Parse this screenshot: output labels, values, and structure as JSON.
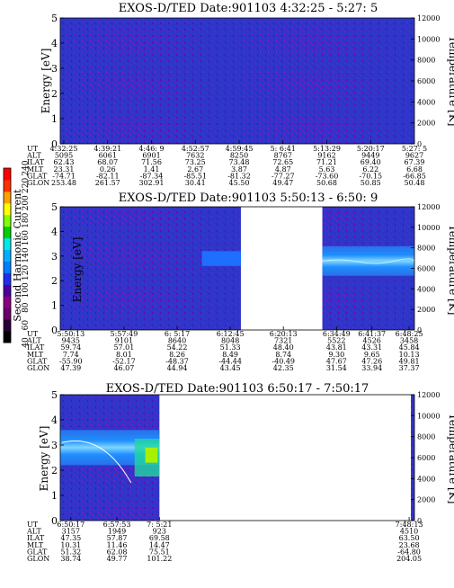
{
  "colors": {
    "background": "#6a00a8",
    "field": "#2e35c8",
    "speck": "#7a1fd0",
    "band_core": "#7fd6ff",
    "band_edge": "#1f8fff",
    "band_mid": "#2a6fe8",
    "colorbar": [
      "#000000",
      "#2a0038",
      "#6a006a",
      "#8a0080",
      "#4b00a0",
      "#1f2ff0",
      "#0080ff",
      "#00b0ff",
      "#00e8e8",
      "#00d000",
      "#80ff00",
      "#ffff00",
      "#ffa000",
      "#ff3000",
      "#ff0000"
    ]
  },
  "colorbar": {
    "label": "Second Harmonic Current",
    "ticks": [
      "40",
      "60",
      "80",
      "100",
      "120",
      "140",
      "160",
      "180",
      "200",
      "220",
      "240"
    ]
  },
  "chart_data": [
    {
      "type": "heatmap",
      "title": "EXOS-D/TED   Date:901103  4:32:25 - 5:27: 5",
      "ylabel": "Energy [eV]",
      "y2label": "Temperature [K]",
      "ylim": [
        0,
        5
      ],
      "y2lim": [
        0,
        12000
      ],
      "yticks": [
        "0",
        "1",
        "2",
        "3",
        "4",
        "5"
      ],
      "y2ticks": [
        "0",
        "2000",
        "4000",
        "6000",
        "8000",
        "10000",
        "12000"
      ],
      "row_labels": [
        "UT",
        "ALT",
        "ILAT",
        "MLT",
        "GLAT",
        "GLON"
      ],
      "columns": [
        [
          "4:32:25",
          "5095",
          "62.43",
          "23.31",
          "-74.71",
          "253.48"
        ],
        [
          "4:39:21",
          "6061",
          "68.07",
          "0.26",
          "-82.11",
          "261.57"
        ],
        [
          "4:46: 9",
          "6901",
          "71.56",
          "1.41",
          "-87.34",
          "302.91"
        ],
        [
          "4:52:57",
          "7632",
          "73.25",
          "2.67",
          "-85.51",
          "30.41"
        ],
        [
          "4:59:45",
          "8250",
          "73.48",
          "3.87",
          "-81.32",
          "45.50"
        ],
        [
          "5: 6:41",
          "8767",
          "72.65",
          "4.87",
          "-77.27",
          "49.47"
        ],
        [
          "5:13:29",
          "9162",
          "71.21",
          "5.63",
          "-73.60",
          "50.68"
        ],
        [
          "5:20:17",
          "9449",
          "69.40",
          "6.22",
          "-70.15",
          "50.85"
        ],
        [
          "5:27: 5",
          "9627",
          "67.39",
          "6.68",
          "-66.85",
          "50.48"
        ]
      ]
    },
    {
      "type": "heatmap",
      "title": "EXOS-D/TED   Date:901103  5:50:13 - 6:50: 9",
      "ylabel": "Energy [eV]",
      "y2label": "Temperature [K]",
      "ylim": [
        0,
        5
      ],
      "y2lim": [
        0,
        12000
      ],
      "yticks": [
        "0",
        "1",
        "2",
        "3",
        "4",
        "5"
      ],
      "y2ticks": [
        "0",
        "2000",
        "4000",
        "6000",
        "8000",
        "10000",
        "12000"
      ],
      "row_labels": [
        "UT",
        "ALT",
        "ILAT",
        "MLT",
        "GLAT",
        "GLON"
      ],
      "columns": [
        [
          "5:50:13",
          "9435",
          "59.74",
          "7.74",
          "-55.90",
          "47.39"
        ],
        [
          "5:57:49",
          "9101",
          "57.01",
          "8.01",
          "-52.17",
          "46.07"
        ],
        [
          "6: 5:17",
          "8640",
          "54.22",
          "8.26",
          "-48.37",
          "44.94"
        ],
        [
          "6:12:45",
          "8048",
          "51.33",
          "8.49",
          "-44.44",
          "43.45"
        ],
        [
          "6:20:13",
          "7321",
          "48.40",
          "8.74",
          "-40.49",
          "42.35"
        ],
        [
          "6:34:49",
          "5522",
          "43.81",
          "9.30",
          "47.67",
          "31.54"
        ],
        [
          "6:41:37",
          "4526",
          "43.31",
          "9.65",
          "47.26",
          "33.94"
        ],
        [
          "6:48:25",
          "3458",
          "45.84",
          "10.13",
          "49.81",
          "37.37"
        ]
      ]
    },
    {
      "type": "heatmap",
      "title": "EXOS-D/TED   Date:901103  6:50:17 - 7:50:17",
      "ylabel": "Energy [eV]",
      "y2label": "Temperature [K]",
      "ylim": [
        0,
        5
      ],
      "y2lim": [
        0,
        12000
      ],
      "yticks": [
        "0",
        "1",
        "2",
        "3",
        "4",
        "5"
      ],
      "y2ticks": [
        "0",
        "2000",
        "4000",
        "6000",
        "8000",
        "10000",
        "12000"
      ],
      "row_labels": [
        "UT",
        "ALT",
        "ILAT",
        "MLT",
        "GLAT",
        "GLON"
      ],
      "columns": [
        [
          "6:50:17",
          "3157",
          "47.35",
          "10.31",
          "51.32",
          "38.74"
        ],
        [
          "6:57:53",
          "1949",
          "57.87",
          "11.46",
          "62.08",
          "49.77"
        ],
        [
          "7: 5:21",
          "923",
          "69.58",
          "14.47",
          "75.51",
          "101.22"
        ],
        [
          "7:48:13",
          "4510",
          "63.50",
          "23.68",
          "-64.80",
          "204.05"
        ]
      ]
    }
  ]
}
